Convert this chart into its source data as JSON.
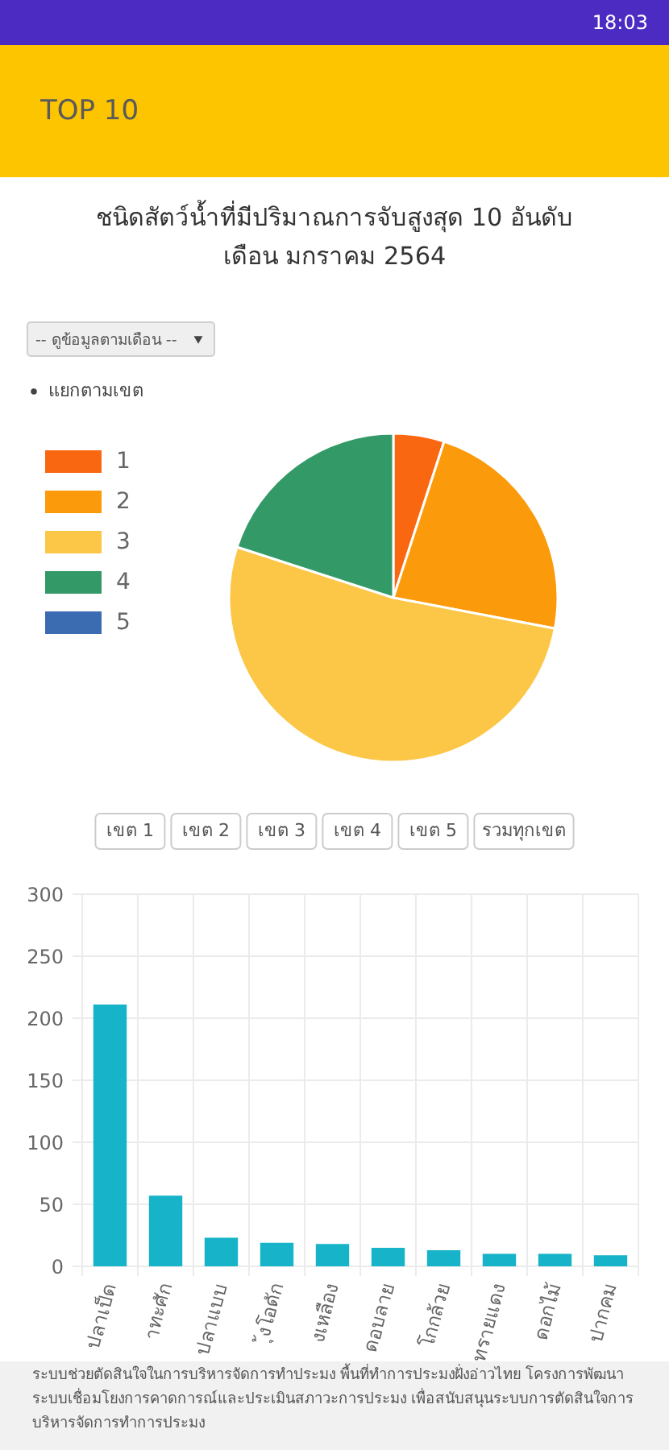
{
  "chart_data": [
    {
      "type": "pie",
      "title": "ชนิดสัตว์น้ำที่มีปริมาณการจับสูงสุด 10 อันดับ\nเดือน มกราคม 2564",
      "annotations": [
        "18:03",
        "TOP 10",
        "-- ดูข้อมูลตามเดือน --",
        "แยกตามเขต"
      ],
      "categories": [
        "1",
        "2",
        "3",
        "4",
        "5"
      ],
      "values": [
        5,
        23,
        52,
        20,
        0
      ],
      "colors": [
        "#fa6711",
        "#fb9a0a",
        "#fcc647",
        "#339966",
        "#3b6bb0"
      ],
      "legend": "top left"
    },
    {
      "type": "bar",
      "categories": [
        "ปลาเป็ด",
        "าทะศัก",
        "ปลาแบบ",
        "ุ้งโอดัก",
        "งเหลือง",
        "ดอบลาย",
        "โกกล้วย",
        "ทรายแดง",
        "ดอกไม้",
        "ปากคม"
      ],
      "values": [
        211,
        57,
        23,
        19,
        18,
        15,
        13,
        10,
        10,
        9
      ],
      "color": "#17b3c9",
      "ylim": [
        0,
        300
      ],
      "yticks": [
        0,
        50,
        100,
        150,
        200,
        250,
        300
      ],
      "grid": true,
      "annotations": [
        "เขต 1",
        "เขต 2",
        "เขต 3",
        "เขต 4",
        "เขต 5",
        "รวมทุกเขต",
        "ระบบช่วยตัดสินใจในการบริหารจัดการทำประมง พื้นที่ทำการประมงฝั่งอ่าวไทย โครงการพัฒนา\nระบบเชื่อมโยงการคาดการณ์และประเมินสภาวะการประมง เพื่อสนับสนุนระบบการตัดสินใจการ\nบริหารจัดการทำการประมง"
      ]
    }
  ]
}
